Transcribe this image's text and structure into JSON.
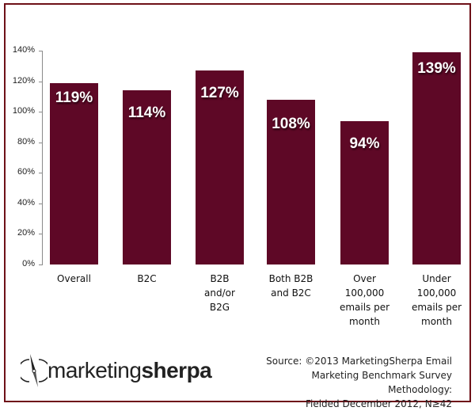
{
  "chart_data": {
    "type": "bar",
    "title": "",
    "xlabel": "",
    "ylabel": "",
    "ylim": [
      0,
      140
    ],
    "yticks": [
      "0%",
      "20%",
      "40%",
      "60%",
      "80%",
      "100%",
      "120%",
      "140%"
    ],
    "grid": false,
    "legend": null,
    "bar_color": "#5e0826",
    "frame_color": "#6e1018",
    "categories": [
      "Overall",
      "B2C",
      "B2B\nand/or\nB2G",
      "Both B2B\nand B2C",
      "Over\n100,000\nemails per\nmonth",
      "Under\n100,000\nemails per\nmonth"
    ],
    "values": [
      119,
      114,
      127,
      108,
      94,
      139
    ],
    "data_labels": [
      "119%",
      "114%",
      "127%",
      "108%",
      "94%",
      "139%"
    ]
  },
  "footer": {
    "logo_light": "marketing",
    "logo_bold": "sherpa",
    "source_lines": [
      "Source: ©2013 MarketingSherpa Email",
      "Marketing Benchmark Survey  Methodology:",
      "Fielded December 2012, N≥42"
    ]
  }
}
